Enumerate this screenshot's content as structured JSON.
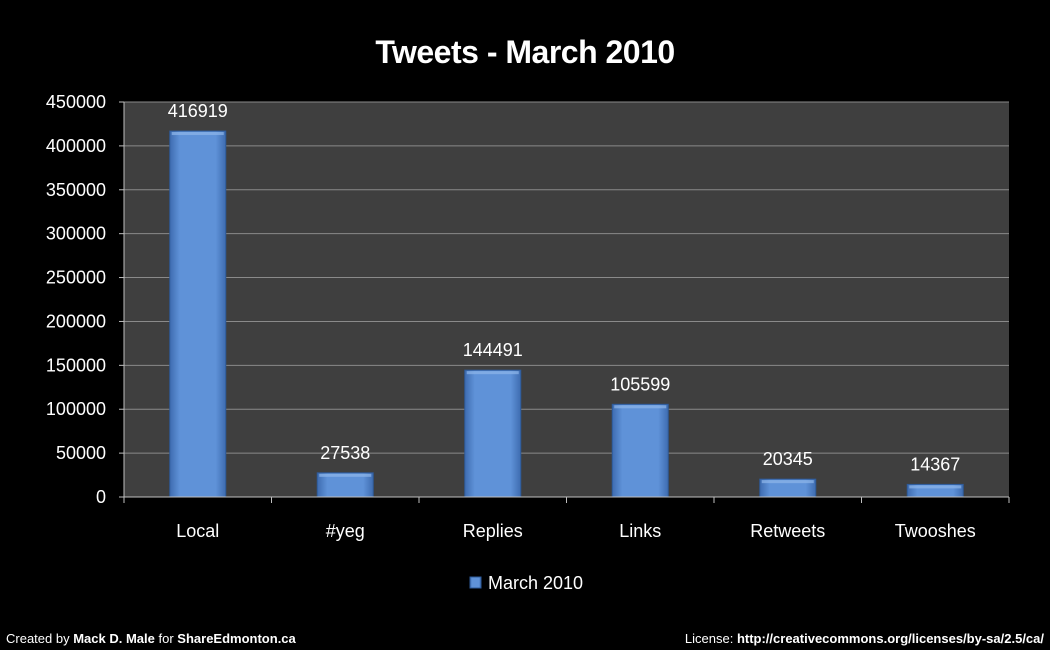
{
  "chart_data": {
    "type": "bar",
    "title": "Tweets - March 2010",
    "categories": [
      "Local",
      "#yeg",
      "Replies",
      "Links",
      "Retweets",
      "Twooshes"
    ],
    "series": [
      {
        "name": "March 2010",
        "values": [
          416919,
          27538,
          144491,
          105599,
          20345,
          14367
        ]
      }
    ],
    "data_labels": [
      "416919",
      "27538",
      "144491",
      "105599",
      "20345",
      "14367"
    ],
    "ylim": [
      0,
      450000
    ],
    "yticks": [
      0,
      50000,
      100000,
      150000,
      200000,
      250000,
      300000,
      350000,
      400000,
      450000
    ],
    "ytick_labels": [
      "0",
      "50000",
      "100000",
      "150000",
      "200000",
      "250000",
      "300000",
      "350000",
      "400000",
      "450000"
    ],
    "grid": true,
    "legend": "bottom",
    "colors": {
      "bar": "#5b8fd6",
      "bar_dark": "#3f6fb5",
      "plot_bg": "#3f3f3f",
      "grid": "#8a8a8a",
      "axis": "#bfbfbf"
    }
  },
  "footer": {
    "left_prefix": "Created by",
    "left_author": "Mack D. Male",
    "left_for": "for",
    "left_site": "ShareEdmonton.ca",
    "right_prefix": "License:",
    "right_url": "http://creativecommons.org/licenses/by-sa/2.5/ca/"
  }
}
